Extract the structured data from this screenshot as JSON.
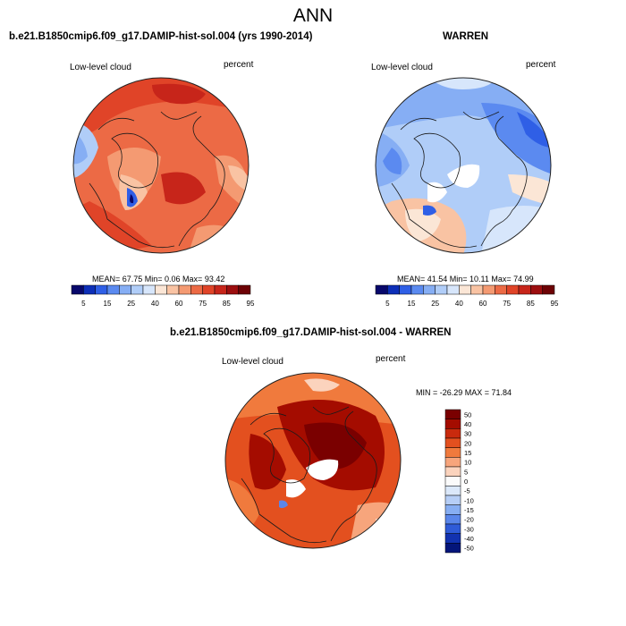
{
  "title": "ANN",
  "panels": [
    {
      "case_title": "b.e21.B1850cmip6.f09_g17.DAMIP-hist-sol.004 (yrs 1990-2014)",
      "variable": "Low-level cloud",
      "units": "percent",
      "stats": "MEAN=  67.75  Min=    0.06  Max=   93.42",
      "colorbar_ticks": [
        "5",
        "15",
        "25",
        "40",
        "60",
        "75",
        "85",
        "95"
      ]
    },
    {
      "case_title": "WARREN",
      "variable": "Low-level cloud",
      "units": "percent",
      "stats": "MEAN=  41.54  Min=   10.11  Max=   74.99",
      "colorbar_ticks": [
        "5",
        "15",
        "25",
        "40",
        "60",
        "75",
        "85",
        "95"
      ]
    },
    {
      "case_title": "b.e21.B1850cmip6.f09_g17.DAMIP-hist-sol.004 - WARREN",
      "variable": "Low-level cloud",
      "units": "percent",
      "stats": "MIN = -26.29 MAX =  71.84",
      "colorbar_ticks": [
        "50",
        "40",
        "30",
        "20",
        "15",
        "10",
        "5",
        "0",
        "-5",
        "-10",
        "-15",
        "-20",
        "-30",
        "-40",
        "-50"
      ]
    }
  ],
  "colors": {
    "abs_scale": [
      "#08086b",
      "#0d2fb8",
      "#2f5fe6",
      "#5b8af0",
      "#86aef4",
      "#b0cdf8",
      "#d7e6fb",
      "#fbe6d6",
      "#f9c3a3",
      "#f49a72",
      "#ec6a45",
      "#e04428",
      "#c7251a",
      "#9c0e0f",
      "#6d0205"
    ],
    "diff_scale": [
      "#7a0000",
      "#a40c00",
      "#c92a0d",
      "#e3501f",
      "#f07a3d",
      "#f7a57c",
      "#fbd3bd",
      "#fbfbfb",
      "#dbe8fa",
      "#b6cef6",
      "#87aef2",
      "#5a86ea",
      "#2f5bd8",
      "#1232b0",
      "#04157a"
    ],
    "coast": "#1a1a1a"
  }
}
